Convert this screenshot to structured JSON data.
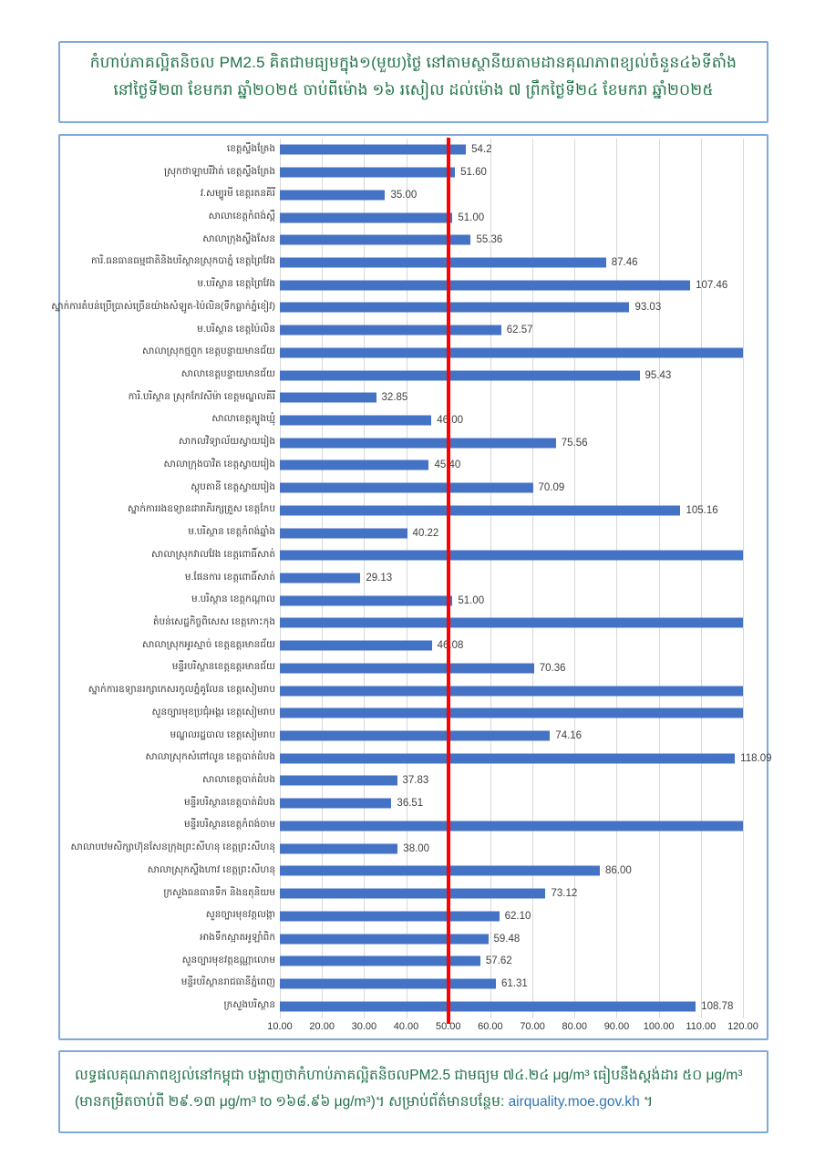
{
  "title": {
    "line1": "កំហាប់ភាគល្អិតនិចល PM2.5 គិតជាមធ្យមក្នុង១(មួយ)ថ្ងៃ នៅតាមស្ថានីយតាមដានគុណភាពខ្យល់ចំនួន៤៦ទីតាំង",
    "line2": "នៅថ្ងៃទី២៣ ខែមករា ឆ្នាំ២០២៥ ចាប់ពីម៉ោង ១៦ រសៀល ដល់ម៉ោង ៧ ព្រឹកថ្ងៃទី២៤ ខែមករា ឆ្នាំ២០២៥"
  },
  "footer": {
    "text_before_link": "លទ្ធផលគុណភាពខ្យល់នៅកម្ពុជា បង្ហាញថាកំហាប់ភាគល្អិតនិចលPM2.5 ជាមធ្យម ៧៤.២៤ μg/m³ ធៀបនឹងស្តង់ដារ ៥០ μg/m³ (មានកម្រិតចាប់ពី ២៩.១៣ μg/m³ to ១៦៨.៩៦ μg/m³)។ សម្រាប់ព័ត៌មានបន្ថែម: ",
    "link": "airquality.moe.gov.kh",
    "text_after_link": " ។"
  },
  "colors": {
    "bar": "#4472c4",
    "reference_line": "#ff0000",
    "box_border": "#7fa8dc",
    "title_text": "#1f7145",
    "link_text": "#2e75b6",
    "gridline": "#d8d8d8"
  },
  "chart_data": {
    "type": "bar",
    "orientation": "horizontal",
    "title": "PM2.5 24h average by monitoring station",
    "xlabel": "",
    "ylabel": "",
    "axis": {
      "min": 10,
      "max": 120,
      "step": 10,
      "tick_labels": [
        "10.00",
        "20.00",
        "30.00",
        "40.00",
        "50.00",
        "60.00",
        "70.00",
        "80.00",
        "90.00",
        "100.00",
        "110.00",
        "120.00"
      ]
    },
    "reference_line": {
      "value": 50
    },
    "grid": true,
    "rows": [
      {
        "name": "ខេត្តស្ទឹងត្រែង",
        "value": 54.2,
        "label": "54.2",
        "clipped": false
      },
      {
        "name": "ស្រុកថាឡាបរីវ៉ាត់ ខេត្តស្ទឹងត្រែង",
        "value": 51.6,
        "label": "51.60",
        "clipped": false
      },
      {
        "name": "វ.សម្បូរមី ខេត្តរតនគីរី",
        "value": 35.0,
        "label": "35.00",
        "clipped": false
      },
      {
        "name": "សាលាខេត្តកំពង់ស្ពឺ",
        "value": 51.0,
        "label": "51.00",
        "clipped": false
      },
      {
        "name": "សាលាក្រុងស្ទឹងសែន",
        "value": 55.36,
        "label": "55.36",
        "clipped": false
      },
      {
        "name": "ការិ.ធនធានធម្មជាតិនិងបរិស្ថានស្រុកបាភ្នំ ខេត្តព្រៃវែង",
        "value": 87.46,
        "label": "87.46",
        "clipped": false
      },
      {
        "name": "ម.បរិស្ថាន ខេត្តព្រៃវែង",
        "value": 107.46,
        "label": "107.46",
        "clipped": false
      },
      {
        "name": "ស្នាក់ការតំបន់ប្រើប្រាស់ច្រើនយ៉ាងសំឡូត-ប៉ៃលិន(ទឹកធ្លាក់ភ្នំខៀវ)",
        "value": 93.03,
        "label": "93.03",
        "clipped": false
      },
      {
        "name": "ម.បរិស្ថាន ខេត្តប៉ៃលិន",
        "value": 62.57,
        "label": "62.57",
        "clipped": false
      },
      {
        "name": "សាលាស្រុកថ្មពួក ខេត្តបន្ទាយមានជ័យ",
        "value": null,
        "label": "",
        "clipped": true
      },
      {
        "name": "សាលាខេត្តបន្ទាយមានជ័យ",
        "value": 95.43,
        "label": "95.43",
        "clipped": false
      },
      {
        "name": "ការិ.បរិស្ថាន ស្រុកកែវសីម៉ា ខេត្តមណ្ឌលគីរី",
        "value": 32.85,
        "label": "32.85",
        "clipped": false
      },
      {
        "name": "សាលាខេត្តត្បូងឃ្មុំ",
        "value": 46.0,
        "label": "46.00",
        "clipped": false
      },
      {
        "name": "សាកលវិទ្យាល័យស្វាយរៀង",
        "value": 75.56,
        "label": "75.56",
        "clipped": false
      },
      {
        "name": "សាលាក្រុងបាវិត ខេត្តស្វាយរៀង",
        "value": 45.4,
        "label": "45.40",
        "clipped": false
      },
      {
        "name": "ស្តុបតានី ខេត្តស្វាយរៀង",
        "value": 70.09,
        "label": "70.09",
        "clipped": false
      },
      {
        "name": "ស្នាក់ការរងឧទ្យានដារាភិរក្សត្រួស ខេត្តកែប",
        "value": 105.16,
        "label": "105.16",
        "clipped": false
      },
      {
        "name": "ម.បរិស្ថាន ខេត្តកំពង់ឆ្នាំង",
        "value": 40.22,
        "label": "40.22",
        "clipped": false
      },
      {
        "name": "សាលាស្រុកវាលវែង ខេត្តពោធិ៍សាត់",
        "value": null,
        "label": "",
        "clipped": true
      },
      {
        "name": "ម.ផែនការ ខេត្តពោធិ៍សាត់",
        "value": 29.13,
        "label": "29.13",
        "clipped": false
      },
      {
        "name": "ម.បរិស្ថាន ខេត្តកណ្តាល",
        "value": 51.0,
        "label": "51.00",
        "clipped": false
      },
      {
        "name": "តំបន់សេដ្ឋកិច្ចពិសេស ខេត្តកោះកុង",
        "value": null,
        "label": "",
        "clipped": true
      },
      {
        "name": "សាលាស្រុកអូរស្មាច់ ខេត្តឧត្តរមានជ័យ",
        "value": 46.08,
        "label": "46.08",
        "clipped": false
      },
      {
        "name": "មន្ទីរបរិស្ថានខេត្តឧត្តរមានជ័យ",
        "value": 70.36,
        "label": "70.36",
        "clipped": false
      },
      {
        "name": "ស្នាក់ការឧទ្យានរក្សាកេសរកូលភ្នំគូលែន ខេត្តសៀមរាប",
        "value": null,
        "label": "",
        "clipped": true
      },
      {
        "name": "សួនច្បារមុខប្រជុំអង្គរ ខេត្តសៀមរាប",
        "value": null,
        "label": "",
        "clipped": true
      },
      {
        "name": "មណ្ឌលរដ្ឋបាល ខេត្តសៀមរាប",
        "value": 74.16,
        "label": "74.16",
        "clipped": false
      },
      {
        "name": "សាលាស្រុកសំពៅលូន ខេត្តបាត់ដំបង",
        "value": 118.09,
        "label": "118.09",
        "clipped": false
      },
      {
        "name": "សាលាខេត្តបាត់ដំបង",
        "value": 37.83,
        "label": "37.83",
        "clipped": false
      },
      {
        "name": "មន្ទីរបរិស្ថានខេត្តបាត់ដំបង",
        "value": 36.51,
        "label": "36.51",
        "clipped": false
      },
      {
        "name": "មន្ទីរបរិស្ថានខេត្តកំពង់ចាម",
        "value": null,
        "label": "",
        "clipped": true
      },
      {
        "name": "សាលាបឋមសិក្សាហ៊ុនសែនក្រុងព្រះសីហនុ ខេត្តព្រះសីហនុ",
        "value": 38.0,
        "label": "38.00",
        "clipped": false
      },
      {
        "name": "សាលាស្រុកស្ទឹងហាវ ខេត្តព្រះសីហនុ",
        "value": 86.0,
        "label": "86.00",
        "clipped": false
      },
      {
        "name": "ក្រសួងធនធានទឹក និងឧតុនិយម",
        "value": 73.12,
        "label": "73.12",
        "clipped": false
      },
      {
        "name": "សួនច្បារមុខវត្តលង្កា",
        "value": 62.1,
        "label": "62.10",
        "clipped": false
      },
      {
        "name": "អាងទឹកស្អាតអូឡាំពិក",
        "value": 59.48,
        "label": "59.48",
        "clipped": false
      },
      {
        "name": "សួនច្បារមុខវត្តឧណ្ណាលោម",
        "value": 57.62,
        "label": "57.62",
        "clipped": false
      },
      {
        "name": "មន្ទីរបរិស្ថានរាជធានីភ្នំពេញ",
        "value": 61.31,
        "label": "61.31",
        "clipped": false
      },
      {
        "name": "ក្រសួងបរិស្ថាន",
        "value": 108.78,
        "label": "108.78",
        "clipped": false
      }
    ]
  }
}
